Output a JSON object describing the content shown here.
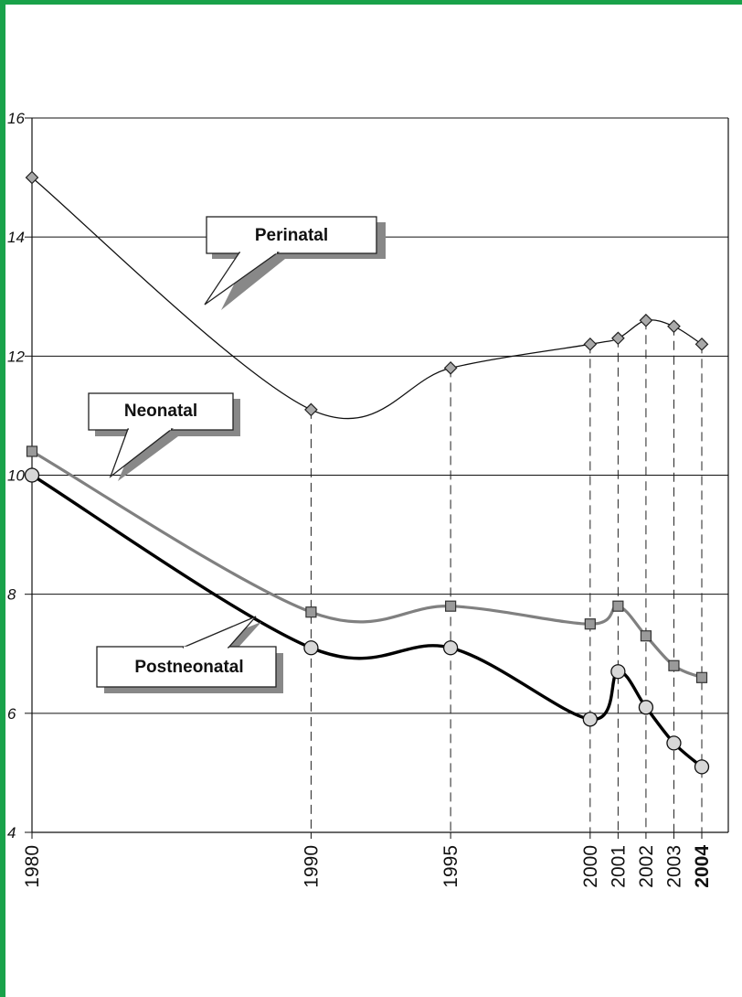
{
  "chart_data": {
    "type": "line",
    "title": "",
    "xlabel": "",
    "ylabel": "",
    "ylim": [
      4,
      16
    ],
    "yticks": [
      "4",
      "6",
      "8",
      "10",
      "12",
      "14",
      "16"
    ],
    "x": [
      1980,
      1990,
      1995,
      2000,
      2001,
      2002,
      2003,
      2004
    ],
    "x_tick_labels": [
      "1980",
      "1990",
      "1995",
      "2000",
      "2001",
      "2002",
      "2003",
      "2004"
    ],
    "highlight_tick": "2004",
    "grid": "horizontal",
    "series": [
      {
        "name": "Perinatal",
        "color": "#111111",
        "marker": "diamond",
        "values": [
          15.0,
          11.1,
          11.8,
          12.2,
          12.3,
          12.6,
          12.5,
          12.2
        ]
      },
      {
        "name": "Neonatal",
        "color": "#808080",
        "marker": "square",
        "values": [
          10.4,
          7.7,
          7.8,
          7.5,
          7.8,
          7.3,
          6.8,
          6.6
        ]
      },
      {
        "name": "Postneonatal",
        "color": "#000000",
        "marker": "circle",
        "values": [
          10.0,
          7.1,
          7.1,
          5.9,
          6.7,
          6.1,
          5.5,
          5.1
        ]
      }
    ],
    "callouts": {
      "perinatal": "Perinatal",
      "neonatal": "Neonatal",
      "postneonatal": "Postneonatal"
    }
  }
}
